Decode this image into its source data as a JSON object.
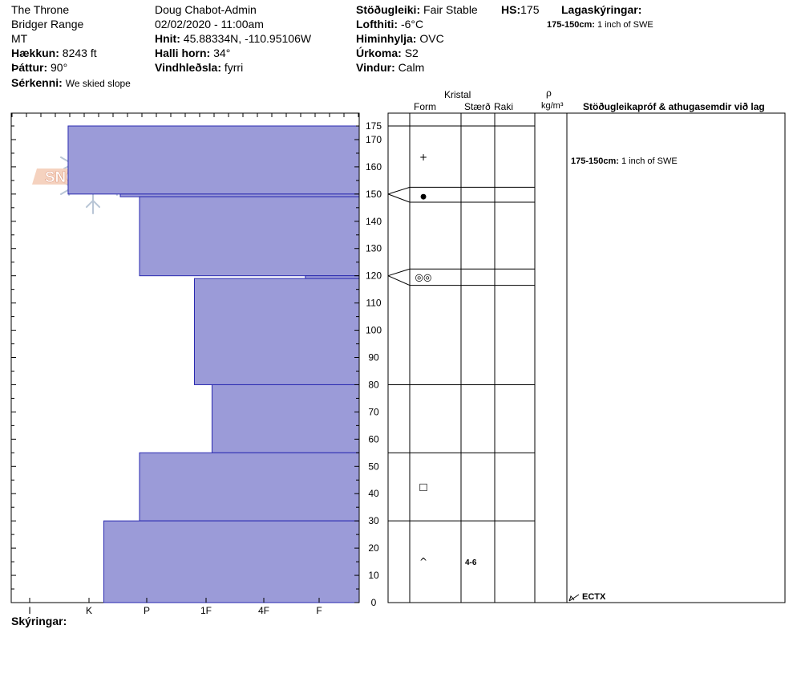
{
  "header": {
    "col1": {
      "location": "The Throne",
      "range": "Bridger Range",
      "state": "MT",
      "elevation_label": "Hækkun:",
      "elevation_value": "8243 ft",
      "aspect_label": "Þáttur:",
      "aspect_value": "90°",
      "features_label": "Sérkenni:",
      "features_value": "We skied slope"
    },
    "col2": {
      "observer": "Doug Chabot-Admin",
      "datetime": "02/02/2020 - 11:00am",
      "coords_label": "Hnit:",
      "coords_value": "45.88334N, -110.95106W",
      "slope_label": "Halli horn:",
      "slope_value": "34°",
      "wind_loading_label": "Vindhleðsla:",
      "wind_loading_value": "fyrri"
    },
    "col3": {
      "stability_label": "Stöðugleiki:",
      "stability_value": "Fair Stable",
      "hs_label": "HS:",
      "hs_value": "175",
      "air_temp_label": "Lofthiti:",
      "air_temp_value": "-6°C",
      "sky_label": "Himinhylja:",
      "sky_value": "OVC",
      "precip_label": "Úrkoma:",
      "precip_value": "S2",
      "wind_label": "Vindur:",
      "wind_value": "Calm"
    },
    "layer_notes": {
      "title": "Lagaskýringar:",
      "range": "175-150cm:",
      "note": "1 inch of SWE"
    }
  },
  "logo_text": "SNOW PILOT",
  "table_headers": {
    "kristal": "Kristal",
    "form": "Form",
    "size": "Stærð",
    "moisture": "Raki",
    "rho": "ρ",
    "density_unit": "kg/m³",
    "tests": "Stöðugleikapróf & athugasemdir við lag"
  },
  "comments": [
    {
      "range": "175-150cm:",
      "text": "1 inch of SWE"
    }
  ],
  "test_result": "ECTX",
  "footer": {
    "legend_label": "Skýringar:"
  },
  "colors": {
    "hardness_fill": "#9b9bd8",
    "hardness_stroke": "#2a2ab0"
  },
  "chart_data": {
    "type": "bar",
    "orientation": "horizontal-step",
    "y_axis": {
      "label": "",
      "min": 0,
      "max": 175,
      "ticks": [
        0,
        10,
        20,
        30,
        40,
        50,
        60,
        70,
        80,
        90,
        100,
        110,
        120,
        130,
        140,
        150,
        160,
        170,
        175
      ]
    },
    "x_axis": {
      "label": "",
      "ticks": [
        "I",
        "K",
        "P",
        "1F",
        "4F",
        "F"
      ]
    },
    "grid": false,
    "layers": [
      {
        "bottom": 150,
        "top": 175,
        "hardness": "F+",
        "form": "+",
        "size": "",
        "moisture": ""
      },
      {
        "bottom": 149,
        "top": 150,
        "hardness": "4F-",
        "form": "●",
        "size": "",
        "moisture": ""
      },
      {
        "bottom": 120,
        "top": 149,
        "hardness": "4F",
        "form": "",
        "size": "",
        "moisture": ""
      },
      {
        "bottom": 119,
        "top": 120,
        "hardness": "K+",
        "form": "◎◎",
        "size": "",
        "moisture": ""
      },
      {
        "bottom": 80,
        "top": 119,
        "hardness": "1F",
        "form": "",
        "size": "",
        "moisture": ""
      },
      {
        "bottom": 55,
        "top": 80,
        "hardness": "1F-",
        "form": "",
        "size": "",
        "moisture": ""
      },
      {
        "bottom": 30,
        "top": 55,
        "hardness": "4F",
        "form": "□",
        "size": "",
        "moisture": ""
      },
      {
        "bottom": 0,
        "top": 30,
        "hardness": "4F-",
        "form": "^",
        "size": "4-6",
        "moisture": ""
      }
    ],
    "hardness_values": [
      {
        "range": [
          150,
          175
        ],
        "value": 5.3
      },
      {
        "range": [
          149,
          150
        ],
        "value": 4.35
      },
      {
        "range": [
          120,
          149
        ],
        "value": 4.0
      },
      {
        "range": [
          119,
          120
        ],
        "value": 0.98
      },
      {
        "range": [
          80,
          119
        ],
        "value": 3.0
      },
      {
        "range": [
          55,
          80
        ],
        "value": 2.68
      },
      {
        "range": [
          30,
          55
        ],
        "value": 4.0
      },
      {
        "range": [
          0,
          30
        ],
        "value": 4.65
      }
    ],
    "hardness_scale_max": 6.0
  }
}
